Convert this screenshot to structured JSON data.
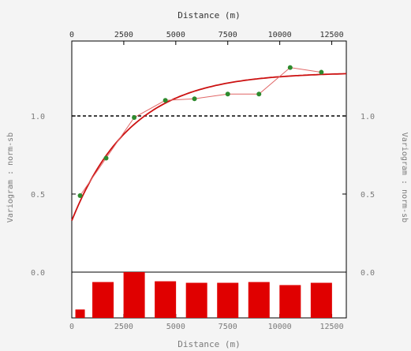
{
  "chart_data": {
    "type": "line",
    "x_top_label": "Distance (m)",
    "x_bottom_label": "Distance (m)",
    "y_left_label": "Variogram : norm-sb",
    "y_right_label": "Variogram : norm-sb",
    "xlim": [
      0,
      13200
    ],
    "ylim": [
      0,
      1.42
    ],
    "x_ticks": [
      0,
      2500,
      5000,
      7500,
      10000,
      12500
    ],
    "x_tick_labels": [
      "0",
      "2500",
      "5000",
      "7500",
      "10000",
      "12500"
    ],
    "y_ticks": [
      0,
      0.5,
      1.0
    ],
    "y_tick_labels_left": [
      "0.0",
      "0.5",
      "1.0"
    ],
    "y_tick_labels_right": [
      "0.0",
      "0.5",
      "1.0"
    ],
    "sill_line": 1.0,
    "experimental": {
      "x": [
        400,
        1650,
        3000,
        4500,
        5900,
        7500,
        9000,
        10500,
        12000
      ],
      "y": [
        0.49,
        0.73,
        0.99,
        1.1,
        1.11,
        1.14,
        1.14,
        1.31,
        1.28
      ]
    },
    "model": {
      "nugget": 0.33,
      "sill": 1.28,
      "range": 8600
    },
    "histogram": {
      "x": [
        400,
        1500,
        3000,
        4500,
        6000,
        7500,
        9000,
        10500,
        12000
      ],
      "values": [
        0.11,
        0.47,
        0.6,
        0.48,
        0.46,
        0.46,
        0.47,
        0.43,
        0.46
      ],
      "max": 0.6
    },
    "colors": {
      "model": "#cc1111",
      "points": "#2e8b2e",
      "connector": "#e06666",
      "bars": "#e00000",
      "sill": "#000000"
    }
  }
}
